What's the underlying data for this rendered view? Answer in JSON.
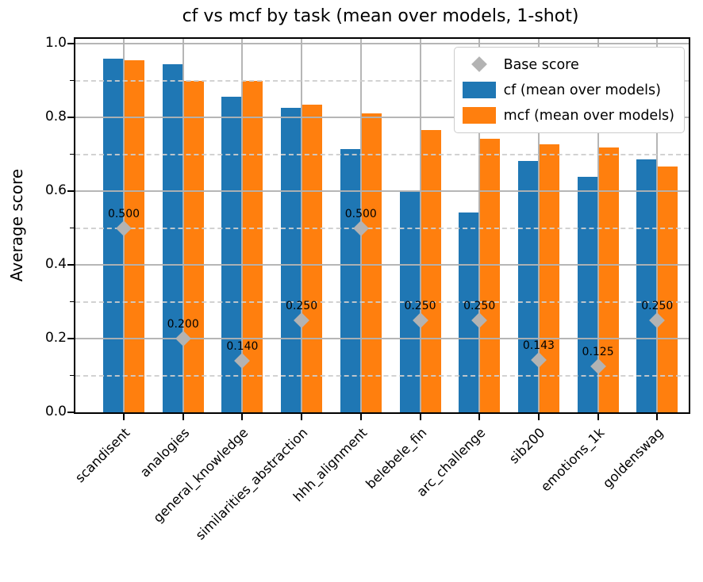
{
  "title": "cf vs mcf by task (mean over models, 1-shot)",
  "ylabel": "Average score",
  "chart_data": {
    "type": "bar",
    "categories": [
      "scandisent",
      "analogies",
      "general_knowledge",
      "similarities_abstraction",
      "hhh_alignment",
      "belebele_fin",
      "arc_challenge",
      "sib200",
      "emotions_1k",
      "goldenswag"
    ],
    "series": [
      {
        "name": "cf (mean over models)",
        "color": "#1f77b4",
        "values": [
          0.96,
          0.945,
          0.855,
          0.826,
          0.713,
          0.6,
          0.541,
          0.681,
          0.638,
          0.686
        ]
      },
      {
        "name": "mcf (mean over models)",
        "color": "#ff7f0e",
        "values": [
          0.955,
          0.9,
          0.9,
          0.834,
          0.81,
          0.765,
          0.742,
          0.726,
          0.718,
          0.666
        ]
      }
    ],
    "base_scores": {
      "name": "Base score",
      "color": "#b3b3b3",
      "values": [
        0.5,
        0.2,
        0.14,
        0.25,
        0.5,
        0.25,
        0.25,
        0.143,
        0.125,
        0.25
      ],
      "labels": [
        "0.500",
        "0.200",
        "0.140",
        "0.250",
        "0.500",
        "0.250",
        "0.250",
        "0.143",
        "0.125",
        "0.250"
      ]
    },
    "title": "cf vs mcf by task (mean over models, 1-shot)",
    "xlabel": "",
    "ylabel": "Average score",
    "ylim": [
      0.0,
      1.013
    ],
    "y_ticks": [
      {
        "v": 0.0,
        "label": "0.0"
      },
      {
        "v": 0.2,
        "label": "0.2"
      },
      {
        "v": 0.4,
        "label": "0.4"
      },
      {
        "v": 0.6,
        "label": "0.6"
      },
      {
        "v": 0.8,
        "label": "0.8"
      },
      {
        "v": 1.0,
        "label": "1.0"
      }
    ],
    "y_minor_step": 0.1,
    "grid": "major solid and minor dashed horizontal lines, solid vertical lines at category centers, drawn over bars",
    "legend_position": "upper right",
    "x_tick_rotation": 45
  }
}
